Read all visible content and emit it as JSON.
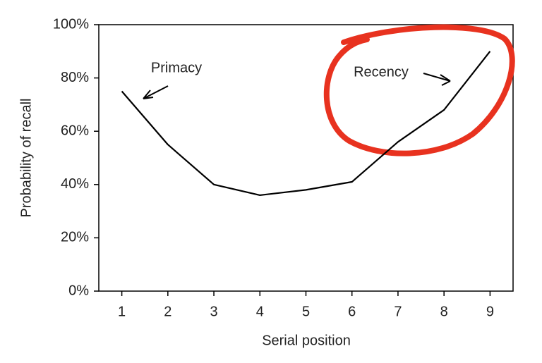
{
  "chart_data": {
    "type": "line",
    "x_label": "Serial position",
    "y_label": "Probability of recall",
    "x": [
      1,
      2,
      3,
      4,
      5,
      6,
      7,
      8,
      9
    ],
    "series": [
      {
        "color": "#000000",
        "values": [
          75,
          55,
          40,
          36,
          38,
          41,
          56,
          68,
          90
        ]
      }
    ],
    "xlim": [
      0.5,
      9.5
    ],
    "xticks": [
      1,
      2,
      3,
      4,
      5,
      6,
      7,
      8,
      9
    ],
    "ylim": [
      0,
      100
    ],
    "yticks": [
      {
        "value": 0,
        "label": "0%"
      },
      {
        "value": 20,
        "label": "20%"
      },
      {
        "value": 40,
        "label": "40%"
      },
      {
        "value": 60,
        "label": "60%"
      },
      {
        "value": 80,
        "label": "80%"
      },
      {
        "value": 100,
        "label": "100%"
      }
    ],
    "annotations": [
      {
        "text": "Primacy"
      },
      {
        "text": "Recency"
      }
    ]
  }
}
